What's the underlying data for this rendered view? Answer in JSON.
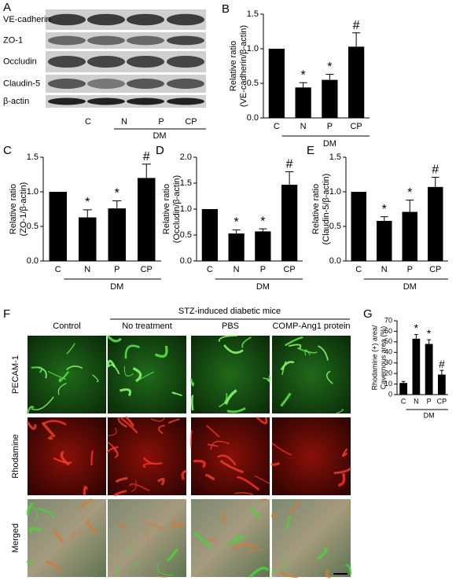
{
  "panel_a": {
    "letter": "A",
    "proteins": [
      "VE-cadherin",
      "ZO-1",
      "Occludin",
      "Claudin-5",
      "β-actin"
    ],
    "lanes": [
      "C",
      "N",
      "P",
      "CP"
    ],
    "group": "DM"
  },
  "panel_f": {
    "letter": "F",
    "group": "STZ-induced diabetic mice",
    "columns": [
      "Control",
      "No treatment",
      "PBS",
      "COMP-Ang1 protein"
    ],
    "rows": [
      "PECAM-1",
      "Rhodamine",
      "Merged"
    ]
  },
  "chart_data": [
    {
      "type": "bar",
      "panel": "B",
      "ylabel": [
        "Relative ratio",
        "(VE-cadherin/β-actin)"
      ],
      "categories": [
        "C",
        "N",
        "P",
        "CP"
      ],
      "values": [
        1.0,
        0.44,
        0.55,
        1.03
      ],
      "errors": [
        0,
        0.07,
        0.08,
        0.2
      ],
      "annotations": [
        null,
        "*",
        "*",
        "#"
      ],
      "group_label": "DM",
      "color": "#000000",
      "ylim": [
        0,
        1.5
      ],
      "yticks": [
        {
          "value": 0,
          "label": "0.0"
        },
        0.5,
        {
          "value": 1,
          "label": "1.0"
        },
        1.5
      ]
    },
    {
      "type": "bar",
      "panel": "C",
      "ylabel": [
        "Relative ratio",
        "(ZO-1/β-actin)"
      ],
      "categories": [
        "C",
        "N",
        "P",
        "CP"
      ],
      "values": [
        1.0,
        0.63,
        0.76,
        1.2
      ],
      "errors": [
        0,
        0.11,
        0.11,
        0.2
      ],
      "annotations": [
        null,
        "*",
        "*",
        "#"
      ],
      "group_label": "DM",
      "color": "#000000",
      "ylim": [
        0,
        1.5
      ],
      "yticks": [
        {
          "value": 0,
          "label": "0.0"
        },
        0.5,
        {
          "value": 1,
          "label": "1.0"
        },
        1.5
      ]
    },
    {
      "type": "bar",
      "panel": "D",
      "ylabel": [
        "Relative ratio",
        "(Occludin/β-actin)"
      ],
      "categories": [
        "C",
        "N",
        "P",
        "CP"
      ],
      "values": [
        1.0,
        0.53,
        0.57,
        1.47
      ],
      "errors": [
        0,
        0.07,
        0.05,
        0.25
      ],
      "annotations": [
        null,
        "*",
        "*",
        "#"
      ],
      "group_label": "DM",
      "color": "#000000",
      "ylim": [
        0,
        2
      ],
      "yticks": [
        {
          "value": 0,
          "label": "0.0"
        },
        0.5,
        {
          "value": 1,
          "label": "1.0"
        },
        1.5,
        {
          "value": 2,
          "label": "2.0"
        }
      ]
    },
    {
      "type": "bar",
      "panel": "E",
      "ylabel": [
        "Relative ratio",
        "(Claudin-5/β-actin)"
      ],
      "categories": [
        "C",
        "N",
        "P",
        "CP"
      ],
      "values": [
        1.0,
        0.58,
        0.71,
        1.07
      ],
      "errors": [
        0,
        0.06,
        0.17,
        0.14
      ],
      "annotations": [
        null,
        "*",
        "*",
        "#"
      ],
      "group_label": "DM",
      "color": "#000000",
      "ylim": [
        0,
        1.5
      ],
      "yticks": [
        {
          "value": 0,
          "label": "0.0"
        },
        0.5,
        {
          "value": 1,
          "label": "1.0"
        },
        1.5
      ]
    },
    {
      "type": "bar",
      "panel": "G",
      "ylabel": [
        "Rhodamine (+) area/",
        "Cavernous area (%)"
      ],
      "categories": [
        "C",
        "N",
        "P",
        "CP"
      ],
      "values": [
        11,
        53,
        48,
        19
      ],
      "errors": [
        1.5,
        4,
        4,
        4
      ],
      "annotations": [
        null,
        "*",
        "*",
        "#"
      ],
      "group_label": "DM",
      "color": "#000000",
      "ylim": [
        0,
        70
      ],
      "yticks": [
        0,
        10,
        20,
        30,
        40,
        50,
        60,
        70
      ]
    }
  ]
}
